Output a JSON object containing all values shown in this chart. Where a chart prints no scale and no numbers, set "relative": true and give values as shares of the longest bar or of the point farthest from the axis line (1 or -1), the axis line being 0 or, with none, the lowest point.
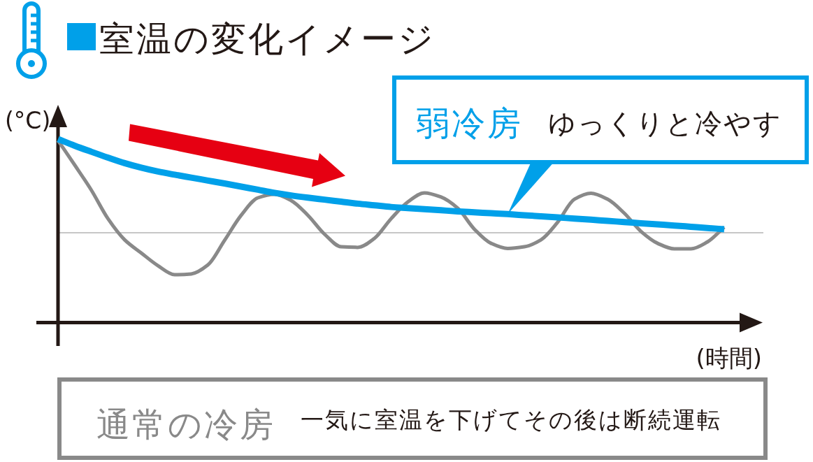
{
  "chart_data": {
    "type": "line",
    "title": "室温の変化イメージ",
    "xlabel": "(時間)",
    "ylabel": "(°C)",
    "relative": true,
    "categories": [
      null,
      null,
      null,
      null,
      null,
      null,
      null,
      null,
      null,
      null,
      null,
      null,
      null,
      null,
      null,
      null,
      null,
      null,
      null,
      null,
      null,
      null,
      null,
      null,
      null,
      null,
      null,
      null,
      null,
      null,
      null,
      null,
      null,
      null,
      null,
      null,
      null,
      null,
      null,
      null,
      null
    ],
    "series": [
      {
        "name": "通常の冷房",
        "color": "#898989",
        "values": [
          0.992,
          0.859,
          0.722,
          0.566,
          0.451,
          0.379,
          0.31,
          0.261,
          0.265,
          0.314,
          0.448,
          0.585,
          0.68,
          0.699,
          0.665,
          0.585,
          0.482,
          0.413,
          0.41,
          0.459,
          0.566,
          0.657,
          0.707,
          0.684,
          0.623,
          0.509,
          0.432,
          0.404,
          0.413,
          0.451,
          0.547,
          0.672,
          0.705,
          0.672,
          0.596,
          0.497,
          0.432,
          0.402,
          0.402,
          0.44,
          0.52
        ]
      },
      {
        "name": "弱冷房",
        "color": "#00a0e9",
        "values": [
          1,
          0.964,
          0.931,
          0.899,
          0.869,
          0.844,
          0.823,
          0.806,
          0.79,
          0.774,
          0.758,
          0.741,
          0.724,
          0.707,
          0.693,
          0.681,
          0.67,
          0.659,
          0.648,
          0.639,
          0.63,
          0.624,
          0.618,
          0.612,
          0.606,
          0.601,
          0.596,
          0.591,
          0.585,
          0.579,
          0.573,
          0.567,
          0.561,
          0.554,
          0.548,
          0.541,
          0.535,
          0.529,
          0.522,
          0.515,
          0.509
        ]
      }
    ],
    "annotations": [
      "一気に室温を下げてその後は断続運転",
      "ゆっくりと冷やす"
    ],
    "ref_lines": [
      {
        "axis": "y",
        "value": 0.49,
        "color": "#b4b4b4"
      }
    ]
  }
}
